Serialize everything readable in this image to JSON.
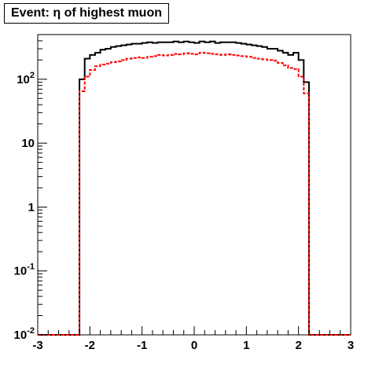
{
  "chart_data": {
    "type": "histogram",
    "title": "Event: η of highest muon",
    "xlabel": "",
    "ylabel": "",
    "xlim": [
      -3,
      3
    ],
    "ylim": [
      0.01,
      500
    ],
    "yscale": "log",
    "grid": false,
    "x_ticks": [
      {
        "value": -3,
        "label": "-3"
      },
      {
        "value": -2,
        "label": "-2"
      },
      {
        "value": -1,
        "label": "-1"
      },
      {
        "value": 0,
        "label": "0"
      },
      {
        "value": 1,
        "label": "1"
      },
      {
        "value": 2,
        "label": "2"
      },
      {
        "value": 3,
        "label": "3"
      }
    ],
    "y_ticks": [
      {
        "value": 0.01,
        "base": "10",
        "exp": "-2"
      },
      {
        "value": 0.1,
        "base": "10",
        "exp": "-1"
      },
      {
        "value": 1,
        "base": "1",
        "exp": ""
      },
      {
        "value": 10,
        "base": "10",
        "exp": ""
      },
      {
        "value": 100,
        "base": "10",
        "exp": "2"
      }
    ],
    "bin_edges": [
      -2.2,
      -2.1,
      -2.0,
      -1.9,
      -1.8,
      -1.7,
      -1.6,
      -1.5,
      -1.4,
      -1.3,
      -1.2,
      -1.1,
      -1.0,
      -0.9,
      -0.8,
      -0.7,
      -0.6,
      -0.5,
      -0.4,
      -0.3,
      -0.2,
      -0.1,
      0.0,
      0.1,
      0.2,
      0.3,
      0.4,
      0.5,
      0.6,
      0.7,
      0.8,
      0.9,
      1.0,
      1.1,
      1.2,
      1.3,
      1.4,
      1.5,
      1.6,
      1.7,
      1.8,
      1.9,
      2.0,
      2.1,
      2.2
    ],
    "series": [
      {
        "color": "#000000",
        "style": "solid",
        "values": [
          100,
          210,
          240,
          260,
          290,
          300,
          320,
          330,
          340,
          350,
          360,
          360,
          370,
          380,
          370,
          380,
          380,
          380,
          390,
          380,
          390,
          380,
          370,
          390,
          380,
          390,
          370,
          380,
          380,
          380,
          370,
          360,
          350,
          340,
          330,
          320,
          300,
          300,
          280,
          260,
          240,
          260,
          200,
          90
        ]
      },
      {
        "color": "#ff0000",
        "style": "dashed",
        "values": [
          65,
          110,
          140,
          160,
          170,
          175,
          185,
          190,
          200,
          210,
          215,
          220,
          215,
          225,
          230,
          240,
          235,
          240,
          250,
          245,
          255,
          250,
          245,
          260,
          255,
          250,
          245,
          240,
          245,
          240,
          235,
          230,
          225,
          215,
          210,
          205,
          200,
          195,
          180,
          165,
          150,
          145,
          110,
          60
        ]
      }
    ],
    "floor_value": 0.01
  }
}
